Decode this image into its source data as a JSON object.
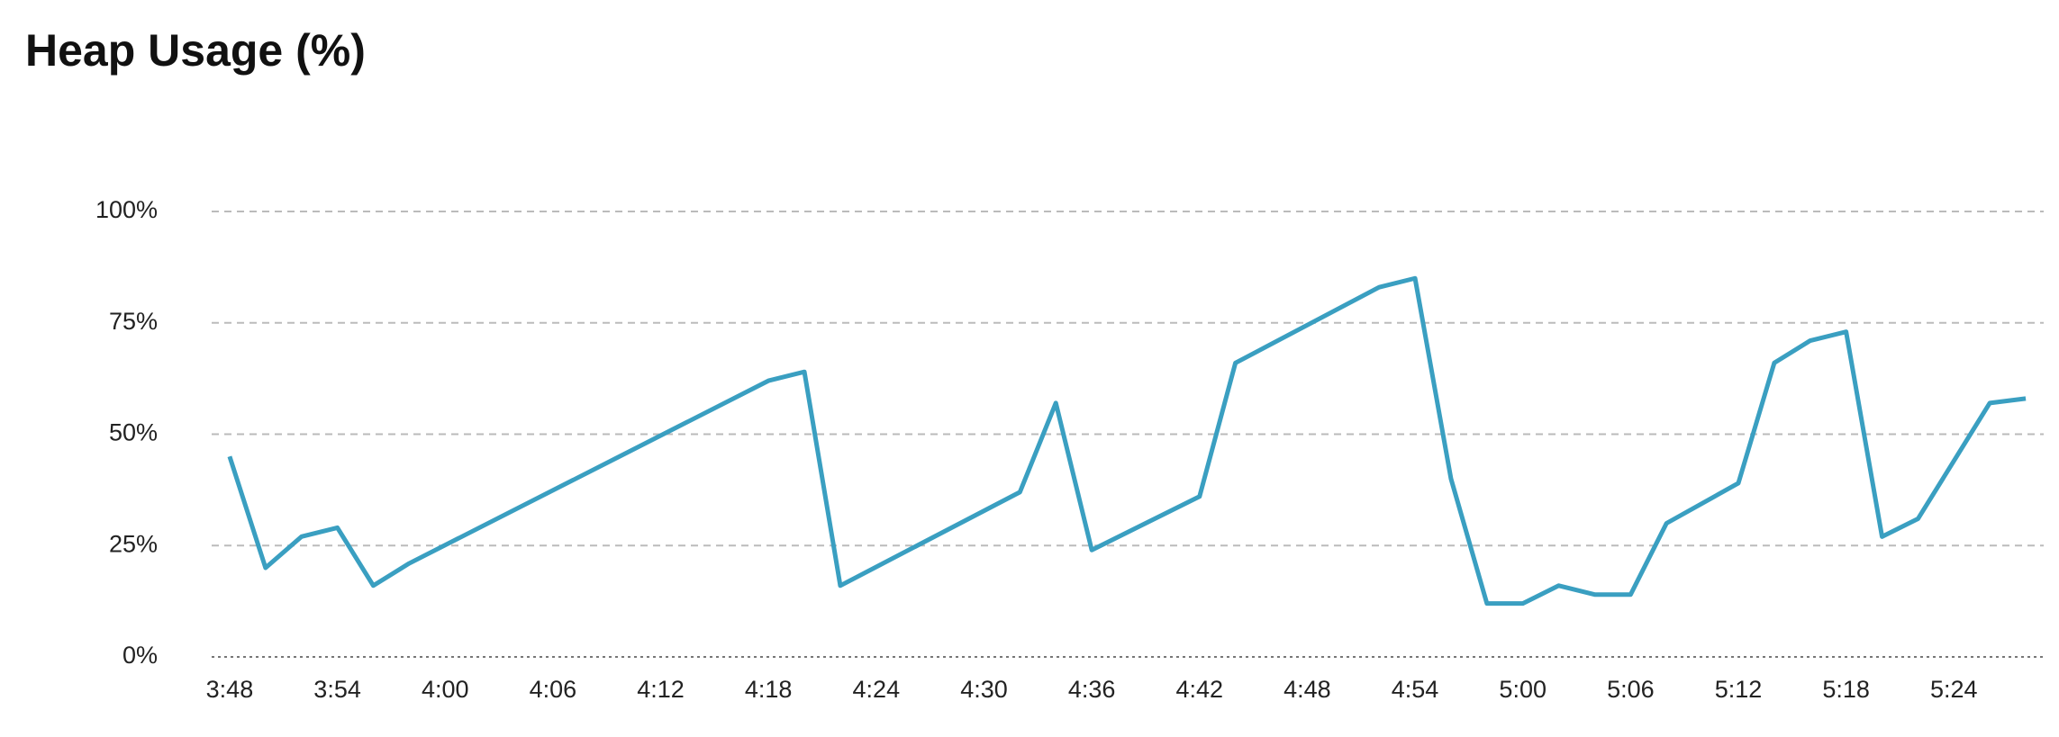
{
  "chart_data": {
    "type": "line",
    "title": "Heap Usage (%)",
    "x": [
      "3:48",
      "3:50",
      "3:52",
      "3:54",
      "3:56",
      "3:58",
      "4:18",
      "4:20",
      "4:22",
      "4:32",
      "4:34",
      "4:36",
      "4:42",
      "4:44",
      "4:52",
      "4:54",
      "4:56",
      "4:58",
      "5:00",
      "5:02",
      "5:04",
      "5:06",
      "5:08",
      "5:12",
      "5:14",
      "5:16",
      "5:18",
      "5:20",
      "5:22",
      "5:26",
      "5:28"
    ],
    "values": [
      45,
      20,
      27,
      29,
      16,
      21,
      62,
      64,
      16,
      37,
      57,
      24,
      36,
      66,
      83,
      85,
      40,
      12,
      12,
      16,
      14,
      14,
      30,
      39,
      66,
      71,
      73,
      27,
      31,
      57,
      58
    ],
    "color": "#3a9fc1",
    "xlim": [
      "3:47",
      "5:29"
    ],
    "xticks": [
      "3:48",
      "3:54",
      "4:00",
      "4:06",
      "4:12",
      "4:18",
      "4:24",
      "4:30",
      "4:36",
      "4:42",
      "4:48",
      "4:54",
      "5:00",
      "5:06",
      "5:12",
      "5:18",
      "5:24"
    ],
    "ylim": [
      0,
      100
    ],
    "yticks": [
      {
        "value": 0,
        "label": "0%"
      },
      {
        "value": 25,
        "label": "25%"
      },
      {
        "value": 50,
        "label": "50%"
      },
      {
        "value": 75,
        "label": "75%"
      },
      {
        "value": 100,
        "label": "100%"
      }
    ],
    "grid": true
  }
}
